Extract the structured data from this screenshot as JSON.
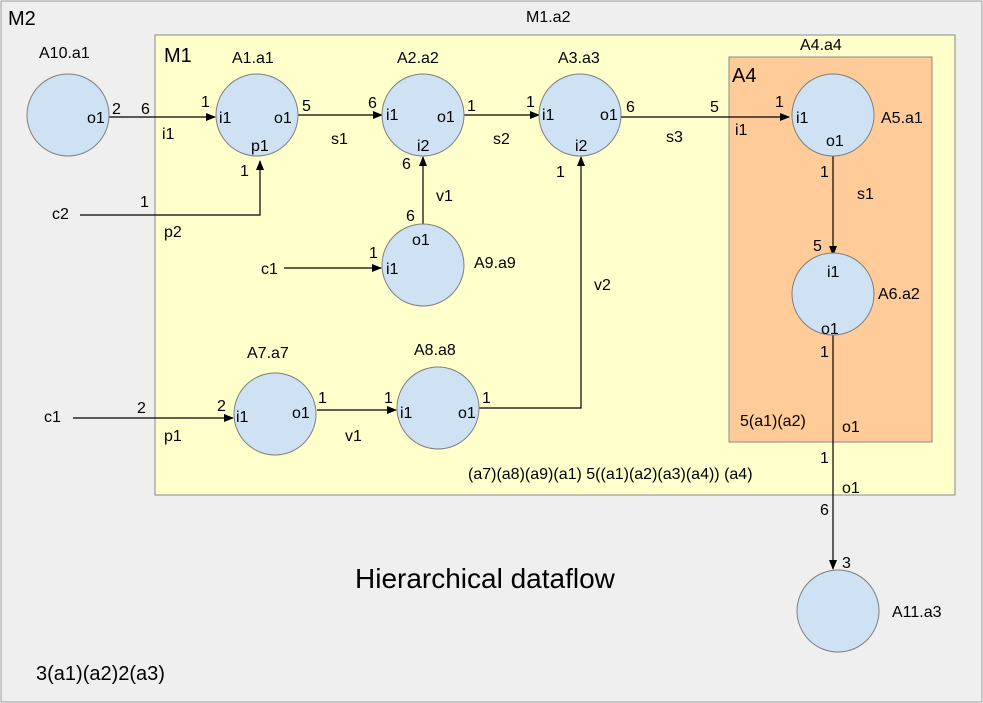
{
  "colors": {
    "background": "#efefef",
    "m1_fill": "#ffffcc",
    "a4_fill": "#ffcc99",
    "node_fill": "#cfe2f3"
  },
  "graph": {
    "m2_label": "M2",
    "m1_title": "M1.a2",
    "m1_label": "M1",
    "a4_title": "A4.a4",
    "a4_label": "A4",
    "a4_schedule": "5(a1)(a2)",
    "m1_schedule": "(a7)(a8)(a9)(a1) 5((a1)(a2)(a3)(a4)) (a4)",
    "m2_schedule": "3(a1)(a2)2(a3)",
    "main_title": "Hierarchical dataflow"
  },
  "nodes": [
    {
      "id": "a10",
      "label": "A10.a1",
      "ports": [
        "o1"
      ]
    },
    {
      "id": "a1",
      "label": "A1.a1",
      "ports": [
        "i1",
        "o1",
        "p1"
      ]
    },
    {
      "id": "a2",
      "label": "A2.a2",
      "ports": [
        "i1",
        "o1",
        "i2"
      ]
    },
    {
      "id": "a3",
      "label": "A3.a3",
      "ports": [
        "i1",
        "o1",
        "i2"
      ]
    },
    {
      "id": "a5",
      "label": "A5.a1",
      "ports": [
        "i1",
        "o1"
      ]
    },
    {
      "id": "a6",
      "label": "A6.a2",
      "ports": [
        "i1",
        "o1"
      ]
    },
    {
      "id": "a9",
      "label": "A9.a9",
      "ports": [
        "o1",
        "i1"
      ]
    },
    {
      "id": "a7",
      "label": "A7.a7",
      "ports": [
        "i1",
        "o1"
      ]
    },
    {
      "id": "a8",
      "label": "A8.a8",
      "ports": [
        "i1",
        "o1"
      ]
    },
    {
      "id": "a11",
      "label": "A11.a3",
      "ports": []
    }
  ],
  "edges": [
    {
      "id": "a10-a1",
      "src_rate": "2",
      "dst_rate": "6",
      "dst_mult": "1",
      "label": "i1"
    },
    {
      "id": "a1-a2",
      "src_rate": "5",
      "dst_rate": "6",
      "label": "s1"
    },
    {
      "id": "a2-a3",
      "src_rate": "1",
      "dst_rate": "1",
      "label": "s2"
    },
    {
      "id": "a3-a5",
      "src_rate": "6",
      "dst_rate": "5",
      "dst_mult": "1",
      "label": "s3",
      "port_label": "i1"
    },
    {
      "id": "a5-a6",
      "src_rate": "1",
      "dst_rate": "5",
      "label": "s1"
    },
    {
      "id": "a6-a11",
      "src_rate": "1",
      "boundary_rate": "1",
      "dst_rate": "6",
      "dst_mult": "3",
      "port_label": "o1",
      "port_label2": "o1"
    },
    {
      "id": "c2-a1",
      "src_label": "c2",
      "src_rate": "1",
      "dst_rate": "1",
      "label": "p2"
    },
    {
      "id": "a9-a2",
      "src_rate": "6",
      "dst_rate": "6",
      "label": "v1"
    },
    {
      "id": "c1-a9",
      "src_label": "c1",
      "dst_rate": "1"
    },
    {
      "id": "c1-a7",
      "src_label": "c1",
      "src_rate": "2",
      "dst_rate": "2",
      "label": "p1"
    },
    {
      "id": "a7-a8",
      "src_rate": "1",
      "dst_rate": "1",
      "label": "v1"
    },
    {
      "id": "a8-a3",
      "src_rate": "1",
      "dst_rate": "1",
      "label": "v2"
    }
  ]
}
